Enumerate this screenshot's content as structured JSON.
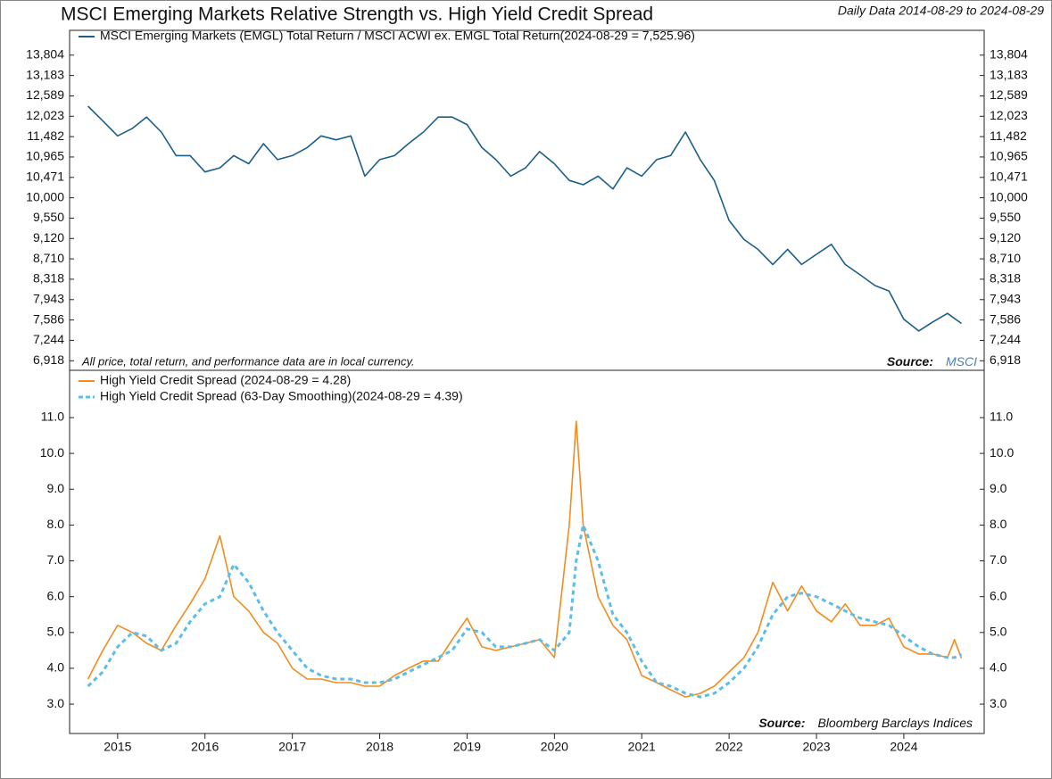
{
  "chart_data": [
    {
      "type": "line",
      "title": "MSCI Emerging Markets Relative Strength vs. High Yield Credit Spread",
      "subtitle": "Daily Data 2014-08-29 to 2024-08-29",
      "note": "All price, total return, and performance data are in local currency.",
      "source_label": "Source:",
      "source": "MSCI",
      "log_scale": true,
      "grid": false,
      "legend": "upper left",
      "xlim": [
        2014.45,
        2024.92
      ],
      "ylim": [
        6770,
        14600
      ],
      "yticks": [
        {
          "value": 6918,
          "label": "6,918"
        },
        {
          "value": 7244,
          "label": "7,244"
        },
        {
          "value": 7586,
          "label": "7,586"
        },
        {
          "value": 7943,
          "label": "7,943"
        },
        {
          "value": 8318,
          "label": "8,318"
        },
        {
          "value": 8710,
          "label": "8,710"
        },
        {
          "value": 9120,
          "label": "9,120"
        },
        {
          "value": 9550,
          "label": "9,550"
        },
        {
          "value": 10000,
          "label": "10,000"
        },
        {
          "value": 10471,
          "label": "10,471"
        },
        {
          "value": 10965,
          "label": "10,965"
        },
        {
          "value": 11482,
          "label": "11,482"
        },
        {
          "value": 12023,
          "label": "12,023"
        },
        {
          "value": 12589,
          "label": "12,589"
        },
        {
          "value": 13183,
          "label": "13,183"
        },
        {
          "value": 13804,
          "label": "13,804"
        }
      ],
      "x": [
        2014.66,
        2014.83,
        2015.0,
        2015.17,
        2015.33,
        2015.5,
        2015.67,
        2015.83,
        2016.0,
        2016.17,
        2016.33,
        2016.5,
        2016.67,
        2016.83,
        2017.0,
        2017.17,
        2017.33,
        2017.5,
        2017.67,
        2017.83,
        2018.0,
        2018.17,
        2018.33,
        2018.5,
        2018.67,
        2018.83,
        2019.0,
        2019.17,
        2019.33,
        2019.5,
        2019.67,
        2019.83,
        2020.0,
        2020.17,
        2020.33,
        2020.5,
        2020.67,
        2020.83,
        2021.0,
        2021.17,
        2021.33,
        2021.5,
        2021.67,
        2021.83,
        2022.0,
        2022.17,
        2022.33,
        2022.5,
        2022.67,
        2022.83,
        2023.0,
        2023.17,
        2023.33,
        2023.5,
        2023.67,
        2023.83,
        2024.0,
        2024.17,
        2024.33,
        2024.5,
        2024.66
      ],
      "series": [
        {
          "name": "MSCI Emerging Markets (EMGL) Total Return / MSCI ACWI ex. EMGL Total Return(2024-08-29 = 7,525.96)",
          "color": "#1a5e8a",
          "linestyle": "solid",
          "values": [
            12300,
            11900,
            11500,
            11700,
            12000,
            11600,
            11000,
            11000,
            10600,
            10700,
            11000,
            10800,
            11300,
            10900,
            11000,
            11200,
            11500,
            11400,
            11500,
            10500,
            10900,
            11000,
            11300,
            11600,
            12000,
            12000,
            11800,
            11200,
            10900,
            10500,
            10700,
            11100,
            10800,
            10400,
            10300,
            10500,
            10200,
            10700,
            10500,
            10900,
            11000,
            11600,
            10900,
            10400,
            9500,
            9100,
            8900,
            8600,
            8900,
            8600,
            8800,
            9000,
            8600,
            8400,
            8200,
            8100,
            7600,
            7400,
            7550,
            7700,
            7526
          ]
        }
      ]
    },
    {
      "type": "line",
      "source_label": "Source:",
      "source": "Bloomberg Barclays Indices",
      "log_scale": false,
      "grid": false,
      "legend": "upper left",
      "xlim": [
        2014.45,
        2024.92
      ],
      "xticks": [
        2015,
        2016,
        2017,
        2018,
        2019,
        2020,
        2021,
        2022,
        2023,
        2024
      ],
      "ylim": [
        2.18,
        12.32
      ],
      "yticks": [
        {
          "value": 3,
          "label": "3.0"
        },
        {
          "value": 4,
          "label": "4.0"
        },
        {
          "value": 5,
          "label": "5.0"
        },
        {
          "value": 6,
          "label": "6.0"
        },
        {
          "value": 7,
          "label": "7.0"
        },
        {
          "value": 8,
          "label": "8.0"
        },
        {
          "value": 9,
          "label": "9.0"
        },
        {
          "value": 10,
          "label": "10.0"
        },
        {
          "value": 11,
          "label": "11.0"
        }
      ],
      "x": [
        2014.66,
        2014.83,
        2015.0,
        2015.17,
        2015.33,
        2015.5,
        2015.67,
        2015.83,
        2016.0,
        2016.17,
        2016.33,
        2016.5,
        2016.67,
        2016.83,
        2017.0,
        2017.17,
        2017.33,
        2017.5,
        2017.67,
        2017.83,
        2018.0,
        2018.17,
        2018.33,
        2018.5,
        2018.67,
        2018.83,
        2019.0,
        2019.17,
        2019.33,
        2019.5,
        2019.67,
        2019.83,
        2020.0,
        2020.17,
        2020.25,
        2020.33,
        2020.5,
        2020.67,
        2020.83,
        2021.0,
        2021.17,
        2021.33,
        2021.5,
        2021.67,
        2021.83,
        2022.0,
        2022.17,
        2022.33,
        2022.5,
        2022.67,
        2022.83,
        2023.0,
        2023.17,
        2023.33,
        2023.5,
        2023.67,
        2023.83,
        2024.0,
        2024.17,
        2024.33,
        2024.5,
        2024.58,
        2024.66
      ],
      "series": [
        {
          "name": "High Yield Credit Spread (2024-08-29 = 4.28)",
          "color": "#f28c1e",
          "linestyle": "solid",
          "values": [
            3.7,
            4.5,
            5.2,
            5.0,
            4.7,
            4.5,
            5.2,
            5.8,
            6.5,
            7.7,
            6.0,
            5.6,
            5.0,
            4.7,
            4.0,
            3.7,
            3.7,
            3.6,
            3.6,
            3.5,
            3.5,
            3.8,
            4.0,
            4.2,
            4.2,
            4.8,
            5.4,
            4.6,
            4.5,
            4.6,
            4.7,
            4.8,
            4.3,
            8.0,
            10.9,
            8.0,
            6.0,
            5.2,
            4.8,
            3.8,
            3.6,
            3.4,
            3.2,
            3.3,
            3.5,
            3.9,
            4.3,
            5.0,
            6.4,
            5.6,
            6.3,
            5.6,
            5.3,
            5.8,
            5.2,
            5.2,
            5.4,
            4.6,
            4.4,
            4.4,
            4.3,
            4.8,
            4.28
          ]
        },
        {
          "name": "High Yield Credit Spread (63-Day Smoothing)(2024-08-29 = 4.39)",
          "color": "#5bbde8",
          "linestyle": "dashed",
          "values": [
            3.5,
            3.9,
            4.6,
            5.0,
            4.9,
            4.5,
            4.7,
            5.3,
            5.8,
            6.0,
            6.9,
            6.4,
            5.6,
            5.0,
            4.5,
            4.0,
            3.8,
            3.7,
            3.7,
            3.6,
            3.6,
            3.7,
            3.9,
            4.1,
            4.3,
            4.5,
            5.1,
            5.0,
            4.6,
            4.6,
            4.7,
            4.8,
            4.5,
            5.0,
            7.0,
            8.0,
            7.0,
            5.5,
            5.0,
            4.2,
            3.6,
            3.5,
            3.3,
            3.2,
            3.3,
            3.6,
            4.0,
            4.6,
            5.5,
            6.0,
            6.1,
            6.0,
            5.8,
            5.6,
            5.4,
            5.3,
            5.2,
            4.9,
            4.6,
            4.4,
            4.3,
            4.3,
            4.39
          ]
        }
      ]
    }
  ]
}
